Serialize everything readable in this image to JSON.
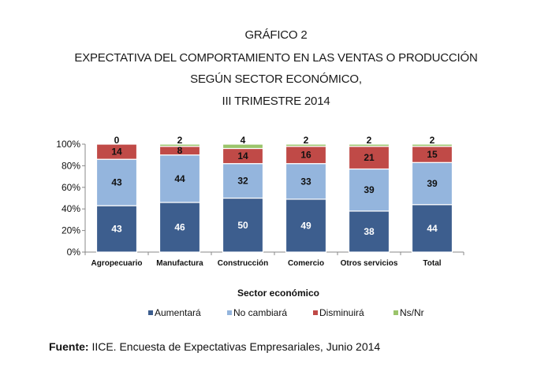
{
  "title_lines": [
    "GRÁFICO 2",
    "EXPECTATIVA DEL COMPORTAMIENTO EN LAS VENTAS O PRODUCCIÓN",
    "SEGÚN SECTOR ECONÓMICO,",
    "III TRIMESTRE 2014"
  ],
  "source": {
    "label": "Fuente:",
    "text": " IICE. Encuesta de Expectativas Empresariales, Junio 2014"
  },
  "chart_data": {
    "type": "bar",
    "stacked": true,
    "categories": [
      "Agropecuario",
      "Manufactura",
      "Construcción",
      "Comercio",
      "Otros servicios",
      "Total"
    ],
    "series": [
      {
        "name": "Aumentará",
        "values": [
          43,
          46,
          50,
          49,
          38,
          44
        ],
        "color": "#3d5e8e"
      },
      {
        "name": "No cambiará",
        "values": [
          43,
          44,
          32,
          33,
          39,
          39
        ],
        "color": "#94b5dd"
      },
      {
        "name": "Disminuirá",
        "values": [
          14,
          8,
          14,
          16,
          21,
          15
        ],
        "color": "#c04a47"
      },
      {
        "name": "Ns/Nr",
        "values": [
          0,
          2,
          4,
          2,
          2,
          2
        ],
        "color": "#9bc46b"
      }
    ],
    "xlabel": "Sector económico",
    "ylabel": "",
    "ylim": [
      0,
      100
    ],
    "y_ticks": [
      "0%",
      "20%",
      "40%",
      "60%",
      "80%",
      "100%"
    ],
    "legend_position": "bottom",
    "grid": false
  }
}
